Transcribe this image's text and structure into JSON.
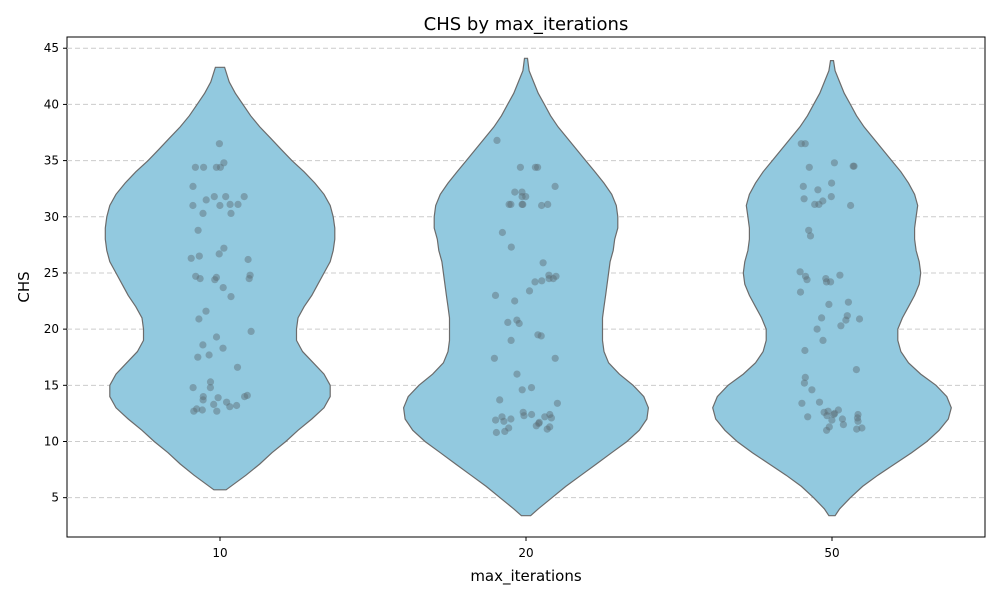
{
  "chart_data": {
    "type": "violin",
    "title": "CHS by max_iterations",
    "xlabel": "max_iterations",
    "ylabel": "CHS",
    "categories": [
      "10",
      "20",
      "50"
    ],
    "ylim": [
      1.5,
      46
    ],
    "yticks": [
      5,
      10,
      15,
      20,
      25,
      30,
      35,
      40,
      45
    ],
    "grid": "y-dashed",
    "colors": {
      "violin_fill": "#92c9df",
      "violin_edge": "#6b6b6b",
      "points": "#5a6b73",
      "grid": "#cccccc"
    },
    "violins": [
      {
        "category": "10",
        "range": [
          5.7,
          43.3
        ],
        "half_width": [
          [
            5.7,
            0.04
          ],
          [
            7,
            0.17
          ],
          [
            8,
            0.26
          ],
          [
            9,
            0.34
          ],
          [
            10,
            0.43
          ],
          [
            11,
            0.51
          ],
          [
            12,
            0.6
          ],
          [
            13,
            0.68
          ],
          [
            14,
            0.72
          ],
          [
            15,
            0.72
          ],
          [
            16,
            0.68
          ],
          [
            17,
            0.61
          ],
          [
            18,
            0.54
          ],
          [
            19,
            0.5
          ],
          [
            20,
            0.5
          ],
          [
            21,
            0.51
          ],
          [
            22,
            0.55
          ],
          [
            23,
            0.6
          ],
          [
            24,
            0.64
          ],
          [
            25,
            0.68
          ],
          [
            26,
            0.72
          ],
          [
            27,
            0.74
          ],
          [
            28,
            0.75
          ],
          [
            29,
            0.75
          ],
          [
            30,
            0.74
          ],
          [
            31,
            0.72
          ],
          [
            32,
            0.68
          ],
          [
            33,
            0.62
          ],
          [
            34,
            0.55
          ],
          [
            35,
            0.47
          ],
          [
            36,
            0.4
          ],
          [
            37,
            0.33
          ],
          [
            38,
            0.26
          ],
          [
            39,
            0.2
          ],
          [
            40,
            0.15
          ],
          [
            41,
            0.1
          ],
          [
            42,
            0.06
          ],
          [
            43.3,
            0.03
          ]
        ]
      },
      {
        "category": "20",
        "range": [
          3.4,
          44.1
        ],
        "half_width": [
          [
            3.4,
            0.03
          ],
          [
            4,
            0.08
          ],
          [
            5,
            0.17
          ],
          [
            6,
            0.26
          ],
          [
            7,
            0.36
          ],
          [
            8,
            0.46
          ],
          [
            9,
            0.56
          ],
          [
            10,
            0.66
          ],
          [
            11,
            0.74
          ],
          [
            12,
            0.79
          ],
          [
            13,
            0.8
          ],
          [
            14,
            0.77
          ],
          [
            15,
            0.7
          ],
          [
            16,
            0.61
          ],
          [
            17,
            0.54
          ],
          [
            18,
            0.51
          ],
          [
            19,
            0.5
          ],
          [
            20,
            0.5
          ],
          [
            21,
            0.5
          ],
          [
            22,
            0.51
          ],
          [
            23,
            0.52
          ],
          [
            24,
            0.53
          ],
          [
            25,
            0.54
          ],
          [
            26,
            0.55
          ],
          [
            27,
            0.57
          ],
          [
            28,
            0.58
          ],
          [
            29,
            0.6
          ],
          [
            30,
            0.6
          ],
          [
            31,
            0.59
          ],
          [
            32,
            0.56
          ],
          [
            33,
            0.51
          ],
          [
            34,
            0.45
          ],
          [
            35,
            0.39
          ],
          [
            36,
            0.33
          ],
          [
            37,
            0.27
          ],
          [
            38,
            0.21
          ],
          [
            39,
            0.16
          ],
          [
            40,
            0.12
          ],
          [
            41,
            0.08
          ],
          [
            42,
            0.05
          ],
          [
            43,
            0.02
          ],
          [
            44.1,
            0.01
          ]
        ]
      },
      {
        "category": "50",
        "range": [
          3.4,
          43.9
        ],
        "half_width": [
          [
            3.4,
            0.02
          ],
          [
            4,
            0.05
          ],
          [
            5,
            0.12
          ],
          [
            6,
            0.2
          ],
          [
            7,
            0.3
          ],
          [
            8,
            0.41
          ],
          [
            9,
            0.52
          ],
          [
            10,
            0.62
          ],
          [
            11,
            0.7
          ],
          [
            12,
            0.76
          ],
          [
            13,
            0.78
          ],
          [
            14,
            0.75
          ],
          [
            15,
            0.68
          ],
          [
            16,
            0.58
          ],
          [
            17,
            0.5
          ],
          [
            18,
            0.45
          ],
          [
            19,
            0.43
          ],
          [
            20,
            0.43
          ],
          [
            21,
            0.46
          ],
          [
            22,
            0.5
          ],
          [
            23,
            0.54
          ],
          [
            24,
            0.57
          ],
          [
            25,
            0.58
          ],
          [
            26,
            0.57
          ],
          [
            27,
            0.55
          ],
          [
            28,
            0.54
          ],
          [
            29,
            0.54
          ],
          [
            30,
            0.55
          ],
          [
            31,
            0.56
          ],
          [
            32,
            0.54
          ],
          [
            33,
            0.5
          ],
          [
            34,
            0.45
          ],
          [
            35,
            0.39
          ],
          [
            36,
            0.33
          ],
          [
            37,
            0.27
          ],
          [
            38,
            0.21
          ],
          [
            39,
            0.16
          ],
          [
            40,
            0.12
          ],
          [
            41,
            0.08
          ],
          [
            42,
            0.05
          ],
          [
            43,
            0.02
          ],
          [
            43.9,
            0.01
          ]
        ]
      }
    ],
    "points": [
      {
        "category": "10",
        "values": [
          36.5,
          34.8,
          34.4,
          34.4,
          34.4,
          34.4,
          32.7,
          31.8,
          31.8,
          31.8,
          31.5,
          31.1,
          31.1,
          31.0,
          31.0,
          30.3,
          30.3,
          28.8,
          27.2,
          26.7,
          26.5,
          26.3,
          26.2,
          24.8,
          24.7,
          24.6,
          24.5,
          24.5,
          24.4,
          23.7,
          22.9,
          21.6,
          20.9,
          19.8,
          19.3,
          18.6,
          18.3,
          17.7,
          17.5,
          16.6,
          15.3,
          14.8,
          14.8,
          14.1,
          14.0,
          14.0,
          13.9,
          13.7,
          13.5,
          13.3,
          13.2,
          13.1,
          12.9,
          12.8,
          12.7,
          12.7
        ]
      },
      {
        "category": "20",
        "values": [
          36.8,
          34.4,
          34.4,
          34.4,
          32.7,
          32.2,
          32.2,
          31.8,
          31.8,
          31.1,
          31.1,
          31.1,
          31.1,
          31.1,
          31.0,
          28.6,
          27.3,
          25.9,
          24.8,
          24.7,
          24.5,
          24.5,
          24.3,
          24.2,
          23.4,
          23.0,
          22.5,
          20.8,
          20.6,
          20.5,
          19.5,
          19.4,
          19.0,
          17.4,
          17.4,
          16.0,
          14.8,
          14.6,
          13.7,
          13.4,
          12.6,
          12.4,
          12.4,
          12.3,
          12.2,
          12.2,
          12.1,
          12.0,
          11.9,
          11.8,
          11.7,
          11.6,
          11.4,
          11.3,
          11.2,
          11.1,
          10.9,
          10.8
        ]
      },
      {
        "category": "50",
        "values": [
          36.5,
          36.5,
          34.8,
          34.5,
          34.5,
          34.4,
          33.0,
          32.7,
          32.4,
          31.8,
          31.6,
          31.4,
          31.1,
          31.1,
          31.0,
          28.8,
          28.3,
          25.1,
          24.8,
          24.7,
          24.5,
          24.4,
          24.2,
          24.2,
          23.3,
          22.4,
          22.2,
          21.2,
          21.0,
          20.9,
          20.8,
          20.3,
          20.0,
          19.0,
          18.1,
          16.4,
          15.7,
          15.2,
          14.6,
          13.5,
          13.4,
          12.8,
          12.7,
          12.6,
          12.5,
          12.4,
          12.4,
          12.3,
          12.2,
          12.1,
          12.0,
          11.9,
          11.8,
          11.5,
          11.3,
          11.2,
          11.1,
          11.0
        ]
      }
    ]
  }
}
